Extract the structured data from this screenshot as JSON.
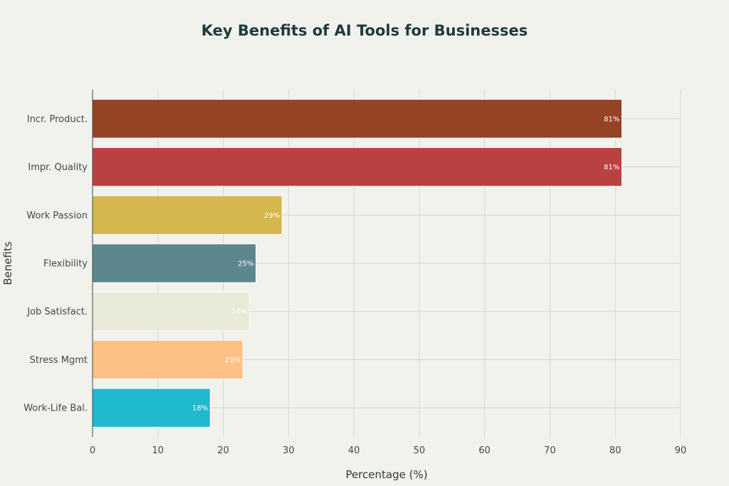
{
  "chart_data": {
    "type": "bar",
    "orientation": "horizontal",
    "title": "Key Benefits of AI Tools for Businesses",
    "xlabel": "Percentage (%)",
    "ylabel": "Benefits",
    "xlim": [
      0,
      90
    ],
    "xticks": [
      0,
      10,
      20,
      30,
      40,
      50,
      60,
      70,
      80,
      90
    ],
    "grid": true,
    "categories": [
      "Incr. Product.",
      "Impr. Quality",
      "Work Passion",
      "Flexibility",
      "Job Satisfact.",
      "Stress Mgmt",
      "Work-Life Bal."
    ],
    "values": [
      81,
      81,
      29,
      25,
      24,
      23,
      18
    ],
    "data_labels": [
      "81%",
      "81%",
      "29%",
      "25%",
      "24%",
      "23%",
      "18%"
    ],
    "colors": [
      "#944325",
      "#b94141",
      "#d4b84e",
      "#5d878f",
      "#e9e9d7",
      "#fec185",
      "#20b9ce"
    ]
  }
}
